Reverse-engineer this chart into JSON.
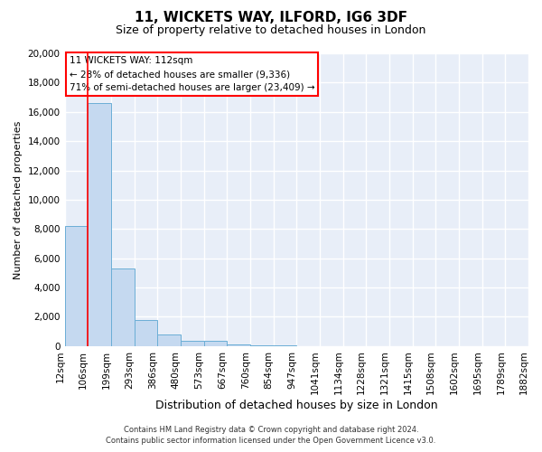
{
  "title1": "11, WICKETS WAY, ILFORD, IG6 3DF",
  "title2": "Size of property relative to detached houses in London",
  "xlabel": "Distribution of detached houses by size in London",
  "ylabel": "Number of detached properties",
  "bar_values": [
    8200,
    16600,
    5300,
    1800,
    800,
    350,
    350,
    100,
    50,
    30,
    20,
    15,
    10,
    8,
    5,
    4,
    3,
    2,
    2,
    1
  ],
  "bar_color": "#c5d9f0",
  "bar_edge_color": "#6baed6",
  "x_labels": [
    "12sqm",
    "106sqm",
    "199sqm",
    "293sqm",
    "386sqm",
    "480sqm",
    "573sqm",
    "667sqm",
    "760sqm",
    "854sqm",
    "947sqm",
    "1041sqm",
    "1134sqm",
    "1228sqm",
    "1321sqm",
    "1415sqm",
    "1508sqm",
    "1602sqm",
    "1695sqm",
    "1789sqm",
    "1882sqm"
  ],
  "red_line_x": 1,
  "ylim": [
    0,
    20000
  ],
  "yticks": [
    0,
    2000,
    4000,
    6000,
    8000,
    10000,
    12000,
    14000,
    16000,
    18000,
    20000
  ],
  "annotation_title": "11 WICKETS WAY: 112sqm",
  "annotation_line1": "← 28% of detached houses are smaller (9,336)",
  "annotation_line2": "71% of semi-detached houses are larger (23,409) →",
  "footer1": "Contains HM Land Registry data © Crown copyright and database right 2024.",
  "footer2": "Contains public sector information licensed under the Open Government Licence v3.0.",
  "background_color": "#e8eef8",
  "grid_color": "#ffffff",
  "title1_fontsize": 11,
  "title2_fontsize": 9,
  "xlabel_fontsize": 9,
  "ylabel_fontsize": 8,
  "tick_fontsize": 7.5,
  "footer_fontsize": 6,
  "annot_fontsize": 7.5
}
